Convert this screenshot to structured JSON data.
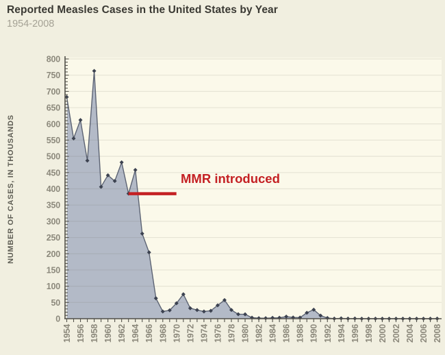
{
  "page": {
    "title": "Reported Measles Cases in the United States by Year",
    "subtitle": "1954-2008"
  },
  "colors": {
    "background": "#f1efe0",
    "plot_background": "#fbf9ea",
    "area_fill": "#b3bac7",
    "line": "#5c6373",
    "marker": "#3c4250",
    "gridline": "rgba(105,105,88,0.14)",
    "axis": "#52514a",
    "tick_label": "#8c897c",
    "annotation": "#c42023"
  },
  "chart_data": {
    "type": "area",
    "title": "Reported Measles Cases in the United States by Year",
    "subtitle": "1954-2008",
    "xlabel": "",
    "ylabel": "NUMBER OF CASES, IN THOUSANDS",
    "ylim": [
      0,
      800
    ],
    "ytick_step": 50,
    "ytick_minor_step": 10,
    "xtick_label_every": 2,
    "grid": "horizontal",
    "legend": "none",
    "x": [
      1954,
      1955,
      1956,
      1957,
      1958,
      1959,
      1960,
      1961,
      1962,
      1963,
      1964,
      1965,
      1966,
      1967,
      1968,
      1969,
      1970,
      1971,
      1972,
      1973,
      1974,
      1975,
      1976,
      1977,
      1978,
      1979,
      1980,
      1981,
      1982,
      1983,
      1984,
      1985,
      1986,
      1987,
      1988,
      1989,
      1990,
      1991,
      1992,
      1993,
      1994,
      1995,
      1996,
      1997,
      1998,
      1999,
      2000,
      2001,
      2002,
      2003,
      2004,
      2005,
      2006,
      2007,
      2008
    ],
    "values": [
      682.7,
      555.2,
      611.9,
      486.8,
      763.1,
      406.2,
      441.7,
      423.9,
      481.5,
      385.2,
      458.1,
      261.9,
      204.1,
      62.7,
      22.2,
      25.8,
      47.4,
      75.3,
      32.3,
      26.7,
      22.1,
      24.4,
      41.1,
      57.3,
      26.9,
      13.6,
      13.5,
      3.1,
      1.7,
      1.5,
      2.6,
      2.8,
      6.3,
      3.7,
      3.4,
      18.2,
      27.8,
      9.6,
      2.2,
      0.3,
      1.0,
      0.3,
      0.5,
      0.1,
      0.1,
      0.1,
      0.1,
      0.1,
      0.05,
      0.06,
      0.04,
      0.07,
      0.06,
      0.04,
      0.14
    ],
    "annotation": {
      "text": "MMR introduced",
      "at_year": 1963,
      "at_value": 385
    }
  }
}
